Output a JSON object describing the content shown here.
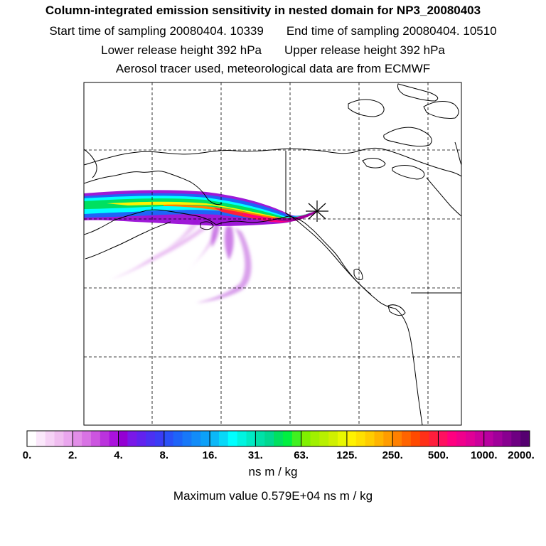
{
  "header": {
    "title": "Column-integrated emission sensitivity in nested domain for NP3_20080403",
    "start_time": "Start time of sampling 20080404. 10339",
    "end_time": "End time of sampling 20080404. 10510",
    "lower_release": "Lower release height  392 hPa",
    "upper_release": "Upper release height  392 hPa",
    "tracer_info": "Aerosol tracer used, meteorological data are from ECMWF"
  },
  "colorbar": {
    "tick_labels": [
      "0.",
      "2.",
      "4.",
      "8.",
      "16.",
      "31.",
      "63.",
      "125.",
      "250.",
      "500.",
      "1000.",
      "2000."
    ],
    "units": "ns m / kg",
    "colors": [
      "#ffffff",
      "#fbe8fb",
      "#f6d2f6",
      "#f0bdf0",
      "#eaa6ee",
      "#e28ee8",
      "#d873e4",
      "#cc55e0",
      "#bb33dd",
      "#aa11dd",
      "#9400d3",
      "#7a18e8",
      "#6222ee",
      "#4c30f2",
      "#3a3cf5",
      "#2a50f7",
      "#1e64f8",
      "#1878f8",
      "#128cf8",
      "#0ca0f8",
      "#0cb8f8",
      "#08d8f8",
      "#00ffff",
      "#00f4e0",
      "#00eac4",
      "#00e0a8",
      "#00d890",
      "#00e060",
      "#00f040",
      "#40f020",
      "#80f000",
      "#a0f000",
      "#b8f000",
      "#d0f000",
      "#e8f800",
      "#fff200",
      "#ffe000",
      "#ffcc00",
      "#ffb400",
      "#ff9c00",
      "#ff8000",
      "#ff6400",
      "#ff4a00",
      "#ff3018",
      "#ff1e3c",
      "#ff1060",
      "#ff0080",
      "#f0008c",
      "#e00096",
      "#cc009c",
      "#b800a0",
      "#a0009a",
      "#880090",
      "#6e0082",
      "#550070"
    ]
  },
  "summary": {
    "max_value": "Maximum value  0.579E+04 ns m / kg"
  },
  "map": {
    "receptor_symbol": "star",
    "plume_colors": {
      "low": "#e6b3f0",
      "lowmid": "#c060e0",
      "mid": "#9400d3",
      "blue": "#2a64f8",
      "cyan": "#00ffff",
      "green": "#00e060",
      "yellow": "#fff200",
      "orange": "#ff8000",
      "red": "#ff1e3c",
      "magenta": "#ff0080",
      "dark": "#a0009a"
    }
  }
}
